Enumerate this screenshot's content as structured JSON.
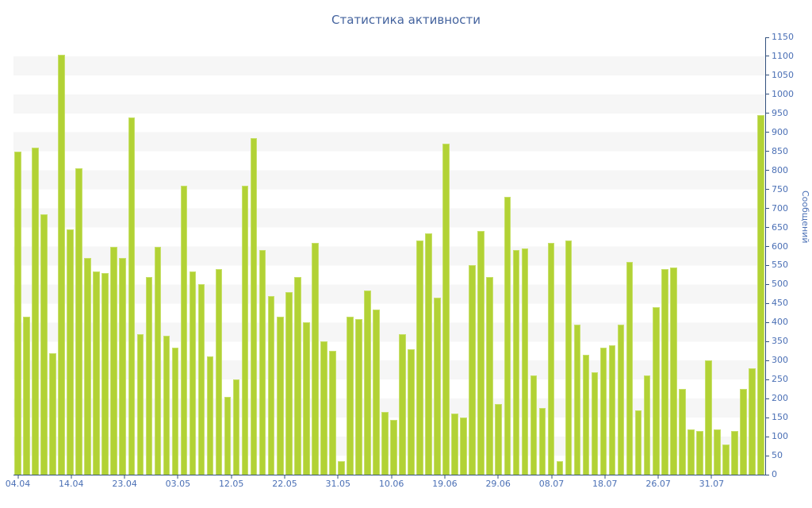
{
  "title": "Статистика активности",
  "chart_data": {
    "type": "bar",
    "title": "Статистика активности",
    "ylabel": "Сообщений",
    "xlabel": "",
    "legend": "none",
    "grid": "alternating horizontal 50-unit bands",
    "ylim": [
      0,
      1150
    ],
    "y_tick_step": 50,
    "y_ticks": [
      0,
      50,
      100,
      150,
      200,
      250,
      300,
      350,
      400,
      450,
      500,
      550,
      600,
      650,
      700,
      750,
      800,
      850,
      900,
      950,
      1000,
      1050,
      1100,
      1150
    ],
    "categories": [
      "04.04",
      "14.04",
      "23.04",
      "03.05",
      "12.05",
      "22.05",
      "31.05",
      "10.06",
      "19.06",
      "29.06",
      "08.07",
      "18.07",
      "26.07",
      "31.07"
    ],
    "values": [
      850,
      415,
      860,
      685,
      320,
      1105,
      645,
      805,
      570,
      535,
      530,
      600,
      570,
      940,
      370,
      520,
      600,
      365,
      335,
      760,
      535,
      500,
      310,
      540,
      205,
      250,
      760,
      885,
      590,
      470,
      415,
      480,
      520,
      400,
      610,
      350,
      325,
      35,
      415,
      410,
      485,
      435,
      165,
      145,
      370,
      330,
      615,
      635,
      465,
      870,
      160,
      150,
      550,
      640,
      520,
      185,
      730,
      590,
      595,
      260,
      175,
      610,
      35,
      615,
      395,
      315,
      270,
      335,
      340,
      395,
      560,
      170,
      260,
      440,
      540,
      545,
      225,
      120,
      115,
      300,
      120,
      80,
      115,
      225,
      280,
      945
    ],
    "colors": {
      "bar": "#b2d235",
      "bar_edge": "#c7e06a",
      "axis_line": "#33517e",
      "tick_text": "#4a6fb5",
      "title_text": "#44639e",
      "stripe": "#f6f6f6",
      "background": "#ffffff"
    }
  }
}
